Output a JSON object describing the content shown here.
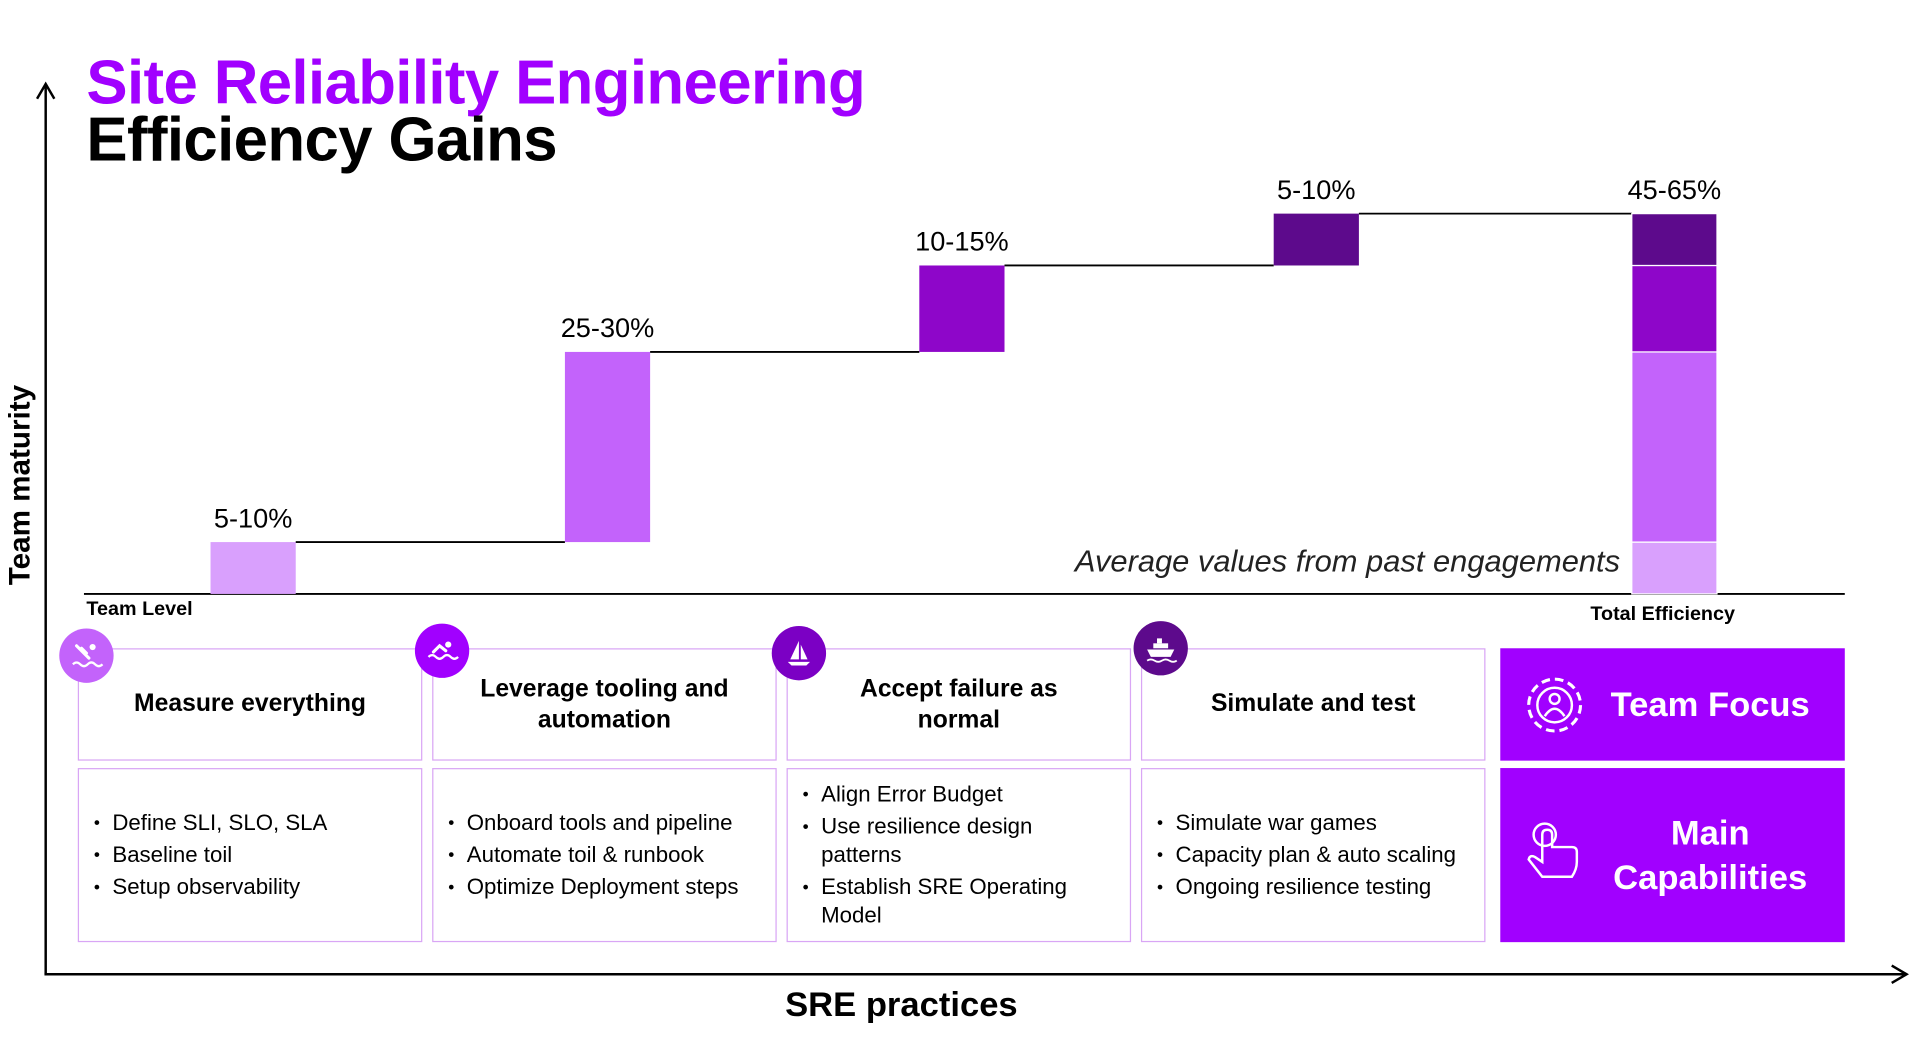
{
  "title": {
    "line1": "Site Reliability Engineering",
    "line2": "Efficiency Gains"
  },
  "axes": {
    "ylabel": "Team maturity",
    "xlabel": "SRE practices",
    "x_start_label": "Team Level",
    "x_end_label": "Total Efficiency"
  },
  "note": "Average values from past engagements",
  "colors": {
    "accent": "#a100ff",
    "step1": "#d9a0fd",
    "step2": "#c363fb",
    "step3": "#8e06c9",
    "step4": "#5d0a8c"
  },
  "practices": [
    {
      "title": "Measure everything",
      "icon": "swimmer-diving-icon",
      "color": "#c363fb",
      "bullets": [
        "Define SLI, SLO, SLA",
        "Baseline toil",
        "Setup observability"
      ]
    },
    {
      "title": "Leverage tooling and automation",
      "icon": "swimmer-icon",
      "color": "#a100ff",
      "bullets": [
        "Onboard tools and pipeline",
        "Automate toil & runbook",
        "Optimize Deployment steps"
      ]
    },
    {
      "title": "Accept failure as normal",
      "icon": "sailboat-icon",
      "color": "#7b00c4",
      "bullets": [
        "Align Error Budget",
        "Use resilience design patterns",
        "Establish SRE Operating Model"
      ]
    },
    {
      "title": "Simulate and test",
      "icon": "cruise-ship-icon",
      "color": "#5d0a8c",
      "bullets": [
        "Simulate war games",
        "Capacity plan & auto scaling",
        "Ongoing resilience testing"
      ]
    }
  ],
  "focus": {
    "team_focus": "Team Focus",
    "main_capabilities": "Main Capabilities",
    "team_icon": "gear-person-icon",
    "capabilities_icon": "hand-tap-icon"
  },
  "chart_data": {
    "type": "waterfall",
    "title": "",
    "xlabel": "SRE practices",
    "ylabel": "Team maturity",
    "categories": [
      "Measure everything",
      "Leverage tooling and automation",
      "Accept failure as normal",
      "Simulate and test",
      "Total Efficiency"
    ],
    "ranges": [
      [
        5,
        10
      ],
      [
        25,
        30
      ],
      [
        10,
        15
      ],
      [
        5,
        10
      ],
      [
        45,
        65
      ]
    ],
    "values": [
      7.5,
      27.5,
      12.5,
      7.5,
      55
    ],
    "labels": [
      "5-10%",
      "25-30%",
      "10-15%",
      "5-10%",
      "45-65%"
    ],
    "total_stack": [
      "Measure everything",
      "Leverage tooling and automation",
      "Accept failure as normal",
      "Simulate and test"
    ]
  }
}
